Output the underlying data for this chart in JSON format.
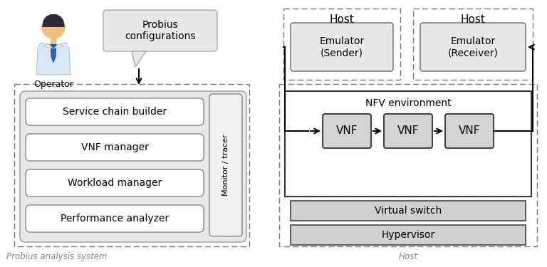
{
  "background_color": "#ffffff",
  "operator_label": "Operator",
  "probius_config_label": "Probius\nconfigurations",
  "left_outer_label": "Probius analysis system",
  "right_outer_label": "Host",
  "monitor_label": "Monitor / tracer",
  "manager_boxes": [
    "Service chain builder",
    "VNF manager",
    "Workload manager",
    "Performance analyzer"
  ],
  "nfv_label": "NFV environment",
  "vnf_labels": [
    "VNF",
    "VNF",
    "VNF"
  ],
  "bottom_boxes": [
    "Virtual switch",
    "Hypervisor"
  ],
  "host_sender_label": "Host",
  "host_receiver_label": "Host",
  "emulator_sender_label": "Emulator\n(Sender)",
  "emulator_receiver_label": "Emulator\n(Receiver)",
  "fig_w": 7.68,
  "fig_h": 3.75,
  "dpi": 100
}
